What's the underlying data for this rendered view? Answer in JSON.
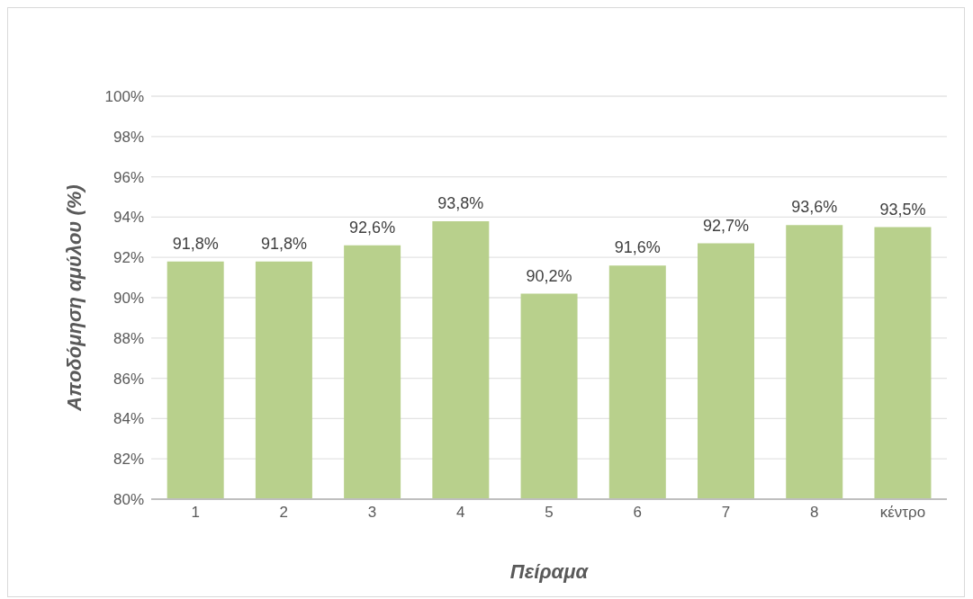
{
  "chart_data": {
    "type": "bar",
    "xlabel": "Πείραμα",
    "ylabel": "Αποδόμηση αμύλου (%)",
    "categories": [
      "1",
      "2",
      "3",
      "4",
      "5",
      "6",
      "7",
      "8",
      "κέντρο"
    ],
    "values": [
      91.8,
      91.8,
      92.6,
      93.8,
      90.2,
      91.6,
      92.7,
      93.6,
      93.5
    ],
    "value_labels": [
      "91,8%",
      "91,8%",
      "92,6%",
      "93,8%",
      "90,2%",
      "91,6%",
      "92,7%",
      "93,6%",
      "93,5%"
    ],
    "color": "#b8d08c",
    "ylim": [
      80,
      100
    ],
    "yticks": [
      {
        "value": 80,
        "label": "80%"
      },
      {
        "value": 82,
        "label": "82%"
      },
      {
        "value": 84,
        "label": "84%"
      },
      {
        "value": 86,
        "label": "86%"
      },
      {
        "value": 88,
        "label": "88%"
      },
      {
        "value": 90,
        "label": "90%"
      },
      {
        "value": 92,
        "label": "92%"
      },
      {
        "value": 94,
        "label": "94%"
      },
      {
        "value": 96,
        "label": "96%"
      },
      {
        "value": 98,
        "label": "98%"
      },
      {
        "value": 100,
        "label": "100%"
      }
    ],
    "grid": "y"
  }
}
